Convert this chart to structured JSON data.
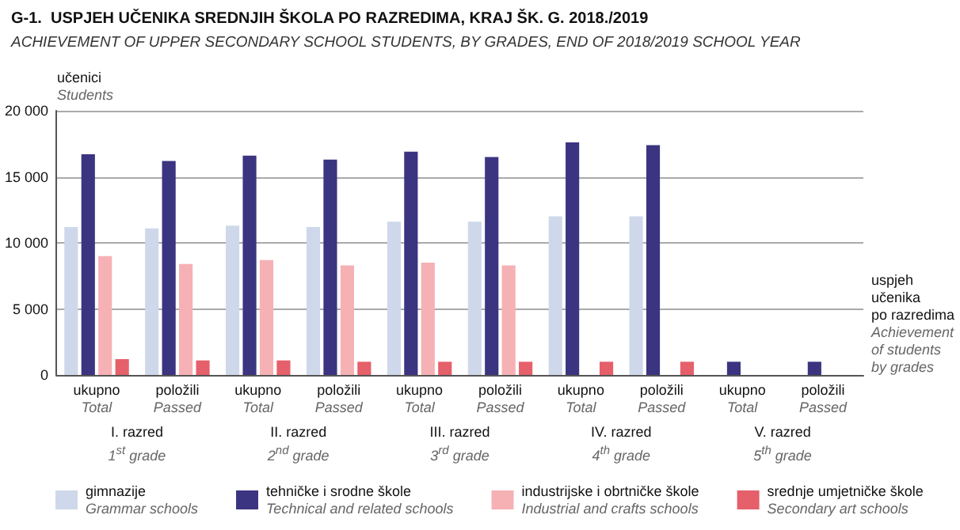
{
  "chart_data": {
    "type": "bar",
    "title": "G-1.  USPJEH UČENIKA SREDNJIH ŠKOLA PO RAZREDIMA, KRAJ ŠK. G. 2018./2019",
    "subtitle": "ACHIEVEMENT OF UPPER SECONDARY SCHOOL STUDENTS, BY GRADES, END OF 2018/2019 SCHOOL YEAR",
    "ylabel": "učenici\nStudents",
    "xlabel": "uspjeh\nučenika\npo razredima\nAchievement\nof students\nby grades",
    "categories": [
      "ukupno\nTotal",
      "položili\nPassed",
      "ukupno\nTotal",
      "položili\nPassed",
      "ukupno\nTotal",
      "položili\nPassed",
      "ukupno\nTotal",
      "položili\nPassed",
      "ukupno\nTotal",
      "položili\nPassed"
    ],
    "series": [
      {
        "name": "gimnazije\nGrammar schools",
        "color": "#cfd8ea",
        "values": [
          11200,
          11100,
          11300,
          11200,
          11600,
          11600,
          12000,
          12000,
          null,
          null
        ]
      },
      {
        "name": "tehničke i srodne škole\nTechnical and related schools",
        "color": "#3b3480",
        "values": [
          16700,
          16200,
          16600,
          16300,
          16900,
          16500,
          17600,
          17400,
          1000,
          1000
        ]
      },
      {
        "name": "industrijske i obrtničke škole\nIndustrial and crafts schools",
        "color": "#f6b1b4",
        "values": [
          9000,
          8400,
          8700,
          8300,
          8500,
          8300,
          null,
          null,
          null,
          null
        ]
      },
      {
        "name": "srednje umjetničke škole\nSecondary art schools",
        "color": "#e5606a",
        "values": [
          1200,
          1100,
          1100,
          1000,
          1000,
          1000,
          1000,
          1000,
          null,
          null
        ]
      }
    ],
    "annotations": [
      "I. razred\n1$^{st}$ grade",
      "II. razred\n2$^{nd}$ grade",
      "III. razred\n3$^{rd}$ grade",
      "IV. razred\n4$^{th}$ grade",
      "V. razred\n5$^{th}$ grade"
    ],
    "ylim": [
      0,
      20000
    ],
    "yticks": [
      {
        "value": 0,
        "label": "0"
      },
      {
        "value": 5000,
        "label": "5 000"
      },
      {
        "value": 10000,
        "label": "10 000"
      },
      {
        "value": 15000,
        "label": "15 000"
      },
      {
        "value": 20000,
        "label": "20 000"
      }
    ],
    "grid": "y",
    "legend": "bottom"
  }
}
